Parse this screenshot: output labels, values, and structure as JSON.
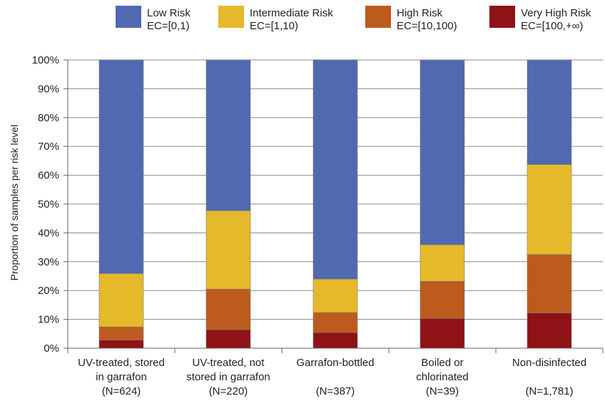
{
  "chart_data": {
    "type": "bar",
    "stacked": true,
    "ylabel": "Proportion of samples per risk level",
    "ylim": [
      0,
      100
    ],
    "y_ticks": [
      "0%",
      "10%",
      "20%",
      "30%",
      "40%",
      "50%",
      "60%",
      "70%",
      "80%",
      "90%",
      "100%"
    ],
    "grid": true,
    "legend_position": "top",
    "categories": [
      {
        "line1": "UV-treated, stored",
        "line2": "in garrafon",
        "n": "(N=624)"
      },
      {
        "line1": "UV-treated, not",
        "line2": "stored in garrafon",
        "n": "(N=220)"
      },
      {
        "line1": "Garrafon-bottled",
        "line2": "",
        "n": "(N=387)"
      },
      {
        "line1": "Boiled or",
        "line2": "chlorinated",
        "n": "(N=39)"
      },
      {
        "line1": "Non-disinfected",
        "line2": "",
        "n": "(N=1,781)"
      }
    ],
    "series": [
      {
        "name": "Very High Risk",
        "range": "EC=[100,+∞)",
        "color": "#8e1216",
        "values": [
          2.8,
          6.4,
          5.4,
          10.3,
          12.2
        ]
      },
      {
        "name": "High Risk",
        "range": "EC=[10,100)",
        "color": "#bd5b1e",
        "values": [
          4.6,
          14.1,
          7.0,
          12.9,
          20.3
        ]
      },
      {
        "name": "Intermediate Risk",
        "range": "EC=[1,10)",
        "color": "#e6b92a",
        "values": [
          18.5,
          27.2,
          11.6,
          12.7,
          31.2
        ]
      },
      {
        "name": "Low Risk",
        "range": "EC=[0,1)",
        "color": "#5069b0",
        "values": [
          74.1,
          52.3,
          76.0,
          64.1,
          36.3
        ]
      }
    ]
  }
}
